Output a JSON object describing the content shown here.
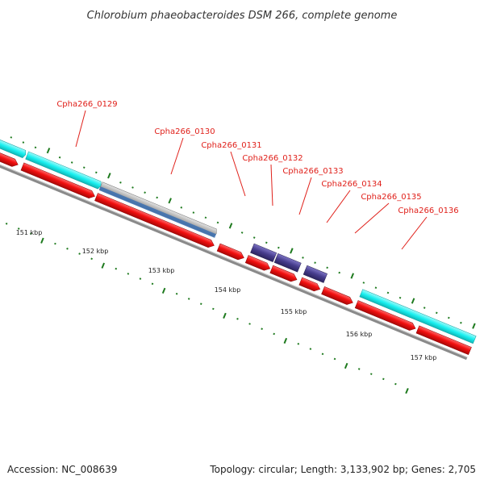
{
  "title": "Chlorobium phaeobacteroides DSM 266, complete genome",
  "footer": {
    "accession": "Accession: NC_008639",
    "summary": "Topology: circular; Length: 3,133,902 bp; Genes: 2,705"
  },
  "colors": {
    "forward_gene": "#19f0f0",
    "reverse_gene": "#f20f0f",
    "rna_feature": "#b4b4b4",
    "misc_feature": "#463c8c",
    "tick": "#1e7a1e",
    "label": "#e0201a",
    "backbone": "#8a8a8a"
  },
  "genes": [
    {
      "name": "Cpha266_0129"
    },
    {
      "name": "Cpha266_0130"
    },
    {
      "name": "Cpha266_0131"
    },
    {
      "name": "Cpha266_0132"
    },
    {
      "name": "Cpha266_0133"
    },
    {
      "name": "Cpha266_0134"
    },
    {
      "name": "Cpha266_0135"
    },
    {
      "name": "Cpha266_0136"
    }
  ],
  "kbp_labels": [
    "151 kbp",
    "152 kbp",
    "153 kbp",
    "154 kbp",
    "155 kbp",
    "156 kbp",
    "157 kbp"
  ]
}
